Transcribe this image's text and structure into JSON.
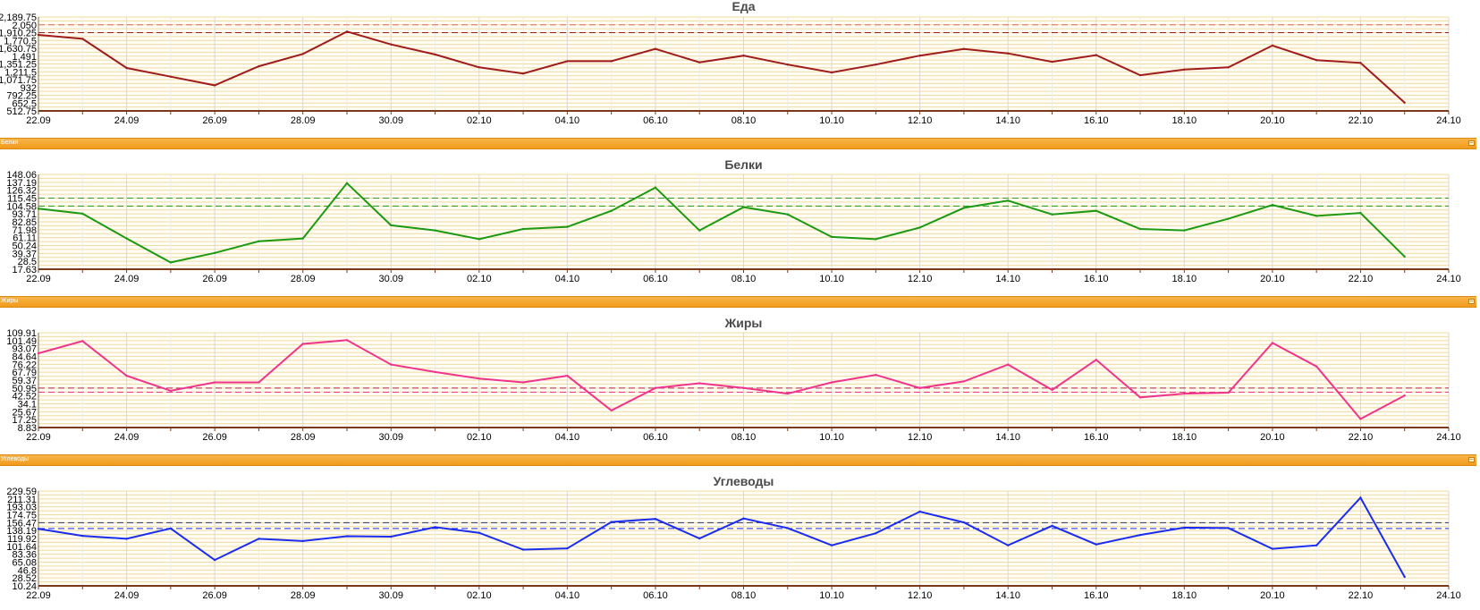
{
  "x_ticks": [
    "22.09",
    "24.09",
    "26.09",
    "28.09",
    "30.09",
    "02.10",
    "04.10",
    "06.10",
    "08.10",
    "10.10",
    "12.10",
    "14.10",
    "16.10",
    "18.10",
    "20.10",
    "22.10",
    "24.10"
  ],
  "panel_bars": [
    {
      "label": "Белки",
      "button": "–"
    },
    {
      "label": "Жиры",
      "button": "–"
    },
    {
      "label": "Углеводы",
      "button": "–"
    }
  ],
  "chart_data": [
    {
      "type": "line",
      "title": "Еда",
      "color": "#a01c1c",
      "limit_color": "#e06a5a",
      "ylim": [
        512.75,
        2189.75
      ],
      "y_ticks": [
        "2,189.75",
        "2,050",
        "1,910.25",
        "1,770.5",
        "1,630.75",
        "1,491",
        "1,351.25",
        "1,211.5",
        "1,071.75",
        "932",
        "792.25",
        "652.5",
        "512.75"
      ],
      "limits": [
        2050,
        1910.25
      ],
      "x": [
        "22.09",
        "23.09",
        "24.09",
        "25.09",
        "26.09",
        "27.09",
        "28.09",
        "29.09",
        "30.09",
        "01.10",
        "02.10",
        "03.10",
        "04.10",
        "05.10",
        "06.10",
        "07.10",
        "08.10",
        "09.10",
        "10.10",
        "11.10",
        "12.10",
        "13.10",
        "14.10",
        "15.10",
        "16.10",
        "17.10",
        "18.10",
        "19.10",
        "20.10",
        "21.10",
        "22.10",
        "23.10"
      ],
      "values": [
        1870,
        1800,
        1280,
        1125,
        970,
        1310,
        1530,
        1930,
        1700,
        1520,
        1290,
        1180,
        1400,
        1400,
        1620,
        1380,
        1500,
        1340,
        1200,
        1340,
        1500,
        1620,
        1540,
        1390,
        1510,
        1150,
        1250,
        1290,
        1680,
        1420,
        1370,
        660
      ]
    },
    {
      "type": "line",
      "title": "Белки",
      "color": "#1c9a12",
      "limit_color": "#3a9a2a",
      "ylim": [
        17.63,
        148.06
      ],
      "y_ticks": [
        "148.06",
        "137.19",
        "126.32",
        "115.45",
        "104.58",
        "93.71",
        "82.85",
        "71.98",
        "61.11",
        "50.24",
        "39.37",
        "28.5",
        "17.63"
      ],
      "limits": [
        115.45,
        104.58
      ],
      "x": [
        "22.09",
        "23.09",
        "24.09",
        "25.09",
        "26.09",
        "27.09",
        "28.09",
        "29.09",
        "30.09",
        "01.10",
        "02.10",
        "03.10",
        "04.10",
        "05.10",
        "06.10",
        "07.10",
        "08.10",
        "09.10",
        "10.10",
        "11.10",
        "12.10",
        "13.10",
        "14.10",
        "15.10",
        "16.10",
        "17.10",
        "18.10",
        "19.10",
        "20.10",
        "21.10",
        "22.10",
        "23.10"
      ],
      "values": [
        101,
        94,
        60,
        27,
        40,
        56,
        60,
        136,
        78,
        71,
        59,
        73,
        76,
        98,
        130,
        71,
        103,
        93,
        62,
        59,
        75,
        102,
        112,
        93,
        98,
        73,
        71,
        87,
        106,
        91,
        95,
        35
      ]
    },
    {
      "type": "line",
      "title": "Жиры",
      "color": "#f0348c",
      "limit_color": "#b02a4a",
      "ylim": [
        8.83,
        109.91
      ],
      "y_ticks": [
        "109.91",
        "101.49",
        "93.07",
        "84.64",
        "76.22",
        "67.79",
        "59.37",
        "50.95",
        "42.52",
        "34.1",
        "25.67",
        "17.25",
        "8.83"
      ],
      "limits": [
        50.95,
        46.5
      ],
      "x": [
        "22.09",
        "23.09",
        "24.09",
        "25.09",
        "26.09",
        "27.09",
        "28.09",
        "29.09",
        "30.09",
        "01.10",
        "02.10",
        "03.10",
        "04.10",
        "05.10",
        "06.10",
        "07.10",
        "08.10",
        "09.10",
        "10.10",
        "11.10",
        "12.10",
        "13.10",
        "14.10",
        "15.10",
        "16.10",
        "17.10",
        "18.10",
        "19.10",
        "20.10",
        "21.10",
        "22.10",
        "23.10"
      ],
      "values": [
        88,
        101,
        64,
        48,
        57,
        57,
        98,
        102,
        76,
        68,
        61,
        57,
        64,
        27,
        51,
        56,
        51,
        45,
        57,
        65,
        51,
        58,
        76,
        49,
        81,
        41,
        45,
        46,
        99,
        74,
        18,
        43
      ]
    },
    {
      "type": "line",
      "title": "Углеводы",
      "color": "#1a2cf0",
      "limit_color": "#333366",
      "ylim": [
        10.24,
        229.59
      ],
      "y_ticks": [
        "229.59",
        "211.31",
        "193.03",
        "174.75",
        "156.47",
        "138.19",
        "119.92",
        "101.64",
        "83.36",
        "65.08",
        "46.8",
        "28.52",
        "10.24"
      ],
      "limits": [
        156.47,
        143
      ],
      "x": [
        "22.09",
        "23.09",
        "24.09",
        "25.09",
        "26.09",
        "27.09",
        "28.09",
        "29.09",
        "30.09",
        "01.10",
        "02.10",
        "03.10",
        "04.10",
        "05.10",
        "06.10",
        "07.10",
        "08.10",
        "09.10",
        "10.10",
        "11.10",
        "12.10",
        "13.10",
        "14.10",
        "15.10",
        "16.10",
        "17.10",
        "18.10",
        "19.10",
        "20.10",
        "21.10",
        "22.10",
        "23.10"
      ],
      "values": [
        142,
        126,
        119,
        143,
        70,
        119,
        114,
        125,
        124,
        146,
        133,
        94,
        97,
        158,
        165,
        120,
        166,
        144,
        104,
        132,
        182,
        157,
        104,
        149,
        106,
        128,
        145,
        144,
        96,
        104,
        214,
        31
      ]
    }
  ]
}
